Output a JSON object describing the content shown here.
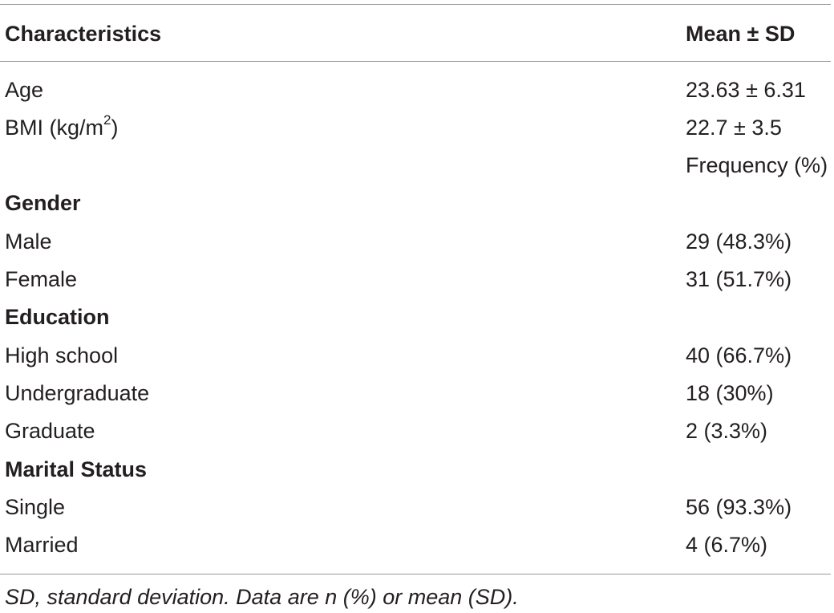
{
  "header": {
    "col1": "Characteristics",
    "col2": "Mean ± SD"
  },
  "rows": [
    {
      "label": "Age",
      "value": "23.63 ± 6.31"
    },
    {
      "label_main": "BMI (kg/m",
      "label_sup": "2",
      "label_tail": ")",
      "value": "22.7 ± 3.5"
    },
    {
      "label": "",
      "value": "Frequency (%)"
    },
    {
      "label": "Gender",
      "value": ""
    },
    {
      "label": "Male",
      "value": "29 (48.3%)"
    },
    {
      "label": "Female",
      "value": "31 (51.7%)"
    },
    {
      "label": "Education",
      "value": ""
    },
    {
      "label": "High school",
      "value": "40 (66.7%)"
    },
    {
      "label": "Undergraduate",
      "value": "18 (30%)"
    },
    {
      "label": "Graduate",
      "value": "2 (3.3%)"
    },
    {
      "label": "Marital Status",
      "value": ""
    },
    {
      "label": "Single",
      "value": "56 (93.3%)"
    },
    {
      "label": "Married",
      "value": "4 (6.7%)"
    }
  ],
  "footnote": "SD, standard deviation. Data are n (%) or mean (SD)."
}
